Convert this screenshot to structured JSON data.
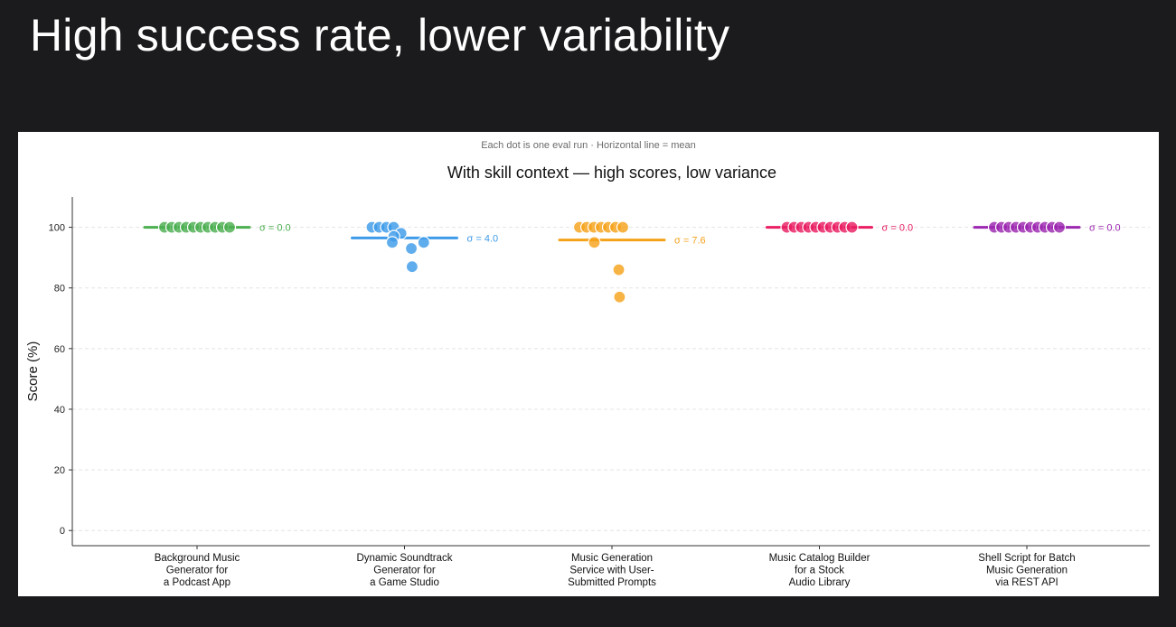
{
  "slide": {
    "title": "High success rate, lower variability"
  },
  "chart_data": {
    "type": "scatter",
    "subtitle": "Each dot is one eval run  ·  Horizontal line = mean",
    "title": "With skill context — high scores, low variance",
    "ylabel": "Score (%)",
    "xlabel": "",
    "ylim": [
      -5,
      110
    ],
    "yticks": [
      0,
      20,
      40,
      60,
      80,
      100
    ],
    "grid": "horizontal-dashed",
    "categories": [
      {
        "label_lines": [
          "Background Music",
          "Generator for",
          "a Podcast App"
        ]
      },
      {
        "label_lines": [
          "Dynamic Soundtrack",
          "Generator for",
          "a Game Studio"
        ]
      },
      {
        "label_lines": [
          "Music Generation",
          "Service with User-",
          "Submitted Prompts"
        ]
      },
      {
        "label_lines": [
          "Music Catalog Builder",
          "for a Stock",
          "Audio Library"
        ]
      },
      {
        "label_lines": [
          "Shell Script for Batch",
          "Music Generation",
          "via REST API"
        ]
      }
    ],
    "series": [
      {
        "color": "#4caf50",
        "mean": 100,
        "sigma_label": "σ = 0.0",
        "values": [
          100,
          100,
          100,
          100,
          100,
          100,
          100,
          100,
          100,
          100
        ]
      },
      {
        "color": "#3d9be9",
        "mean": 96.5,
        "sigma_label": "σ = 4.0",
        "values": [
          100,
          100,
          100,
          100,
          98,
          97,
          95,
          95,
          93,
          87
        ]
      },
      {
        "color": "#f5a21b",
        "mean": 95.8,
        "sigma_label": "σ = 7.6",
        "values": [
          100,
          100,
          100,
          100,
          100,
          100,
          100,
          95,
          86,
          77
        ]
      },
      {
        "color": "#e91e63",
        "mean": 100,
        "sigma_label": "σ = 0.0",
        "values": [
          100,
          100,
          100,
          100,
          100,
          100,
          100,
          100,
          100,
          100
        ]
      },
      {
        "color": "#9c27b0",
        "mean": 100,
        "sigma_label": "σ = 0.0",
        "values": [
          100,
          100,
          100,
          100,
          100,
          100,
          100,
          100,
          100,
          100
        ]
      }
    ]
  }
}
